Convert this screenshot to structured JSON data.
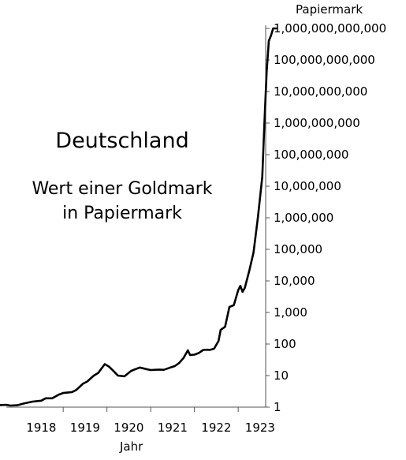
{
  "chart_data": {
    "type": "line",
    "title": "Deutschland",
    "subtitle_lines": [
      "Wert einer Goldmark",
      "in Papiermark"
    ],
    "xlabel": "Jahr",
    "ylabel": "Papiermark",
    "y_scale": "log10",
    "xlim": [
      1917.5,
      1923.95
    ],
    "ylim": [
      1,
      1000000000000
    ],
    "grid": false,
    "x_tick_labels": [
      "1918",
      "1919",
      "1920",
      "1921",
      "1922",
      "1923"
    ],
    "y_tick_values": [
      1,
      10,
      100,
      1000,
      10000,
      100000,
      1000000,
      10000000,
      100000000,
      1000000000,
      10000000000,
      100000000000,
      1000000000000
    ],
    "y_tick_labels": [
      "1",
      "10",
      "100",
      "1,000",
      "10,000",
      "100,000",
      "1,000,000",
      "10,000,000",
      "100,000,000",
      "1,000,000,000",
      "10,000,000,000",
      "100,000,000,000",
      "1,000,000,000,000"
    ],
    "series": [
      {
        "color": "#000000",
        "x": [
          1917.5,
          1917.7,
          1917.8,
          1917.95,
          1918.1,
          1918.3,
          1918.5,
          1918.6,
          1918.75,
          1918.9,
          1919.0,
          1919.2,
          1919.3,
          1919.45,
          1919.55,
          1919.7,
          1919.8,
          1919.95,
          1920.05,
          1920.15,
          1920.25,
          1920.4,
          1920.55,
          1920.6,
          1920.75,
          1920.9,
          1921.0,
          1921.1,
          1921.2,
          1921.3,
          1921.45,
          1921.55,
          1921.65,
          1921.75,
          1921.85,
          1921.9,
          1922.0,
          1922.1,
          1922.2,
          1922.3,
          1922.35,
          1922.45,
          1922.55,
          1922.6,
          1922.7,
          1922.8,
          1922.9,
          1923.0,
          1923.05,
          1923.1,
          1923.15,
          1923.25,
          1923.35,
          1923.45,
          1923.55,
          1923.6,
          1923.65,
          1923.7,
          1923.75,
          1923.8,
          1923.9
        ],
        "y": [
          1.15,
          1.18,
          1.12,
          1.15,
          1.3,
          1.5,
          1.6,
          1.9,
          1.9,
          2.5,
          2.8,
          3.0,
          3.5,
          5.5,
          6.5,
          10,
          12,
          23,
          19,
          14,
          10,
          9.5,
          14,
          15,
          18,
          16,
          15,
          15.2,
          15.5,
          15.2,
          18,
          20,
          25,
          36,
          63,
          45,
          46,
          52,
          65,
          66,
          65,
          71,
          125,
          280,
          350,
          1500,
          1700,
          5000,
          7000,
          4500,
          6000,
          20000,
          80000,
          1000000,
          20000000,
          1000000000,
          40000000000,
          400000000000,
          600000000000,
          1000000000000,
          1000000000000
        ]
      }
    ]
  }
}
